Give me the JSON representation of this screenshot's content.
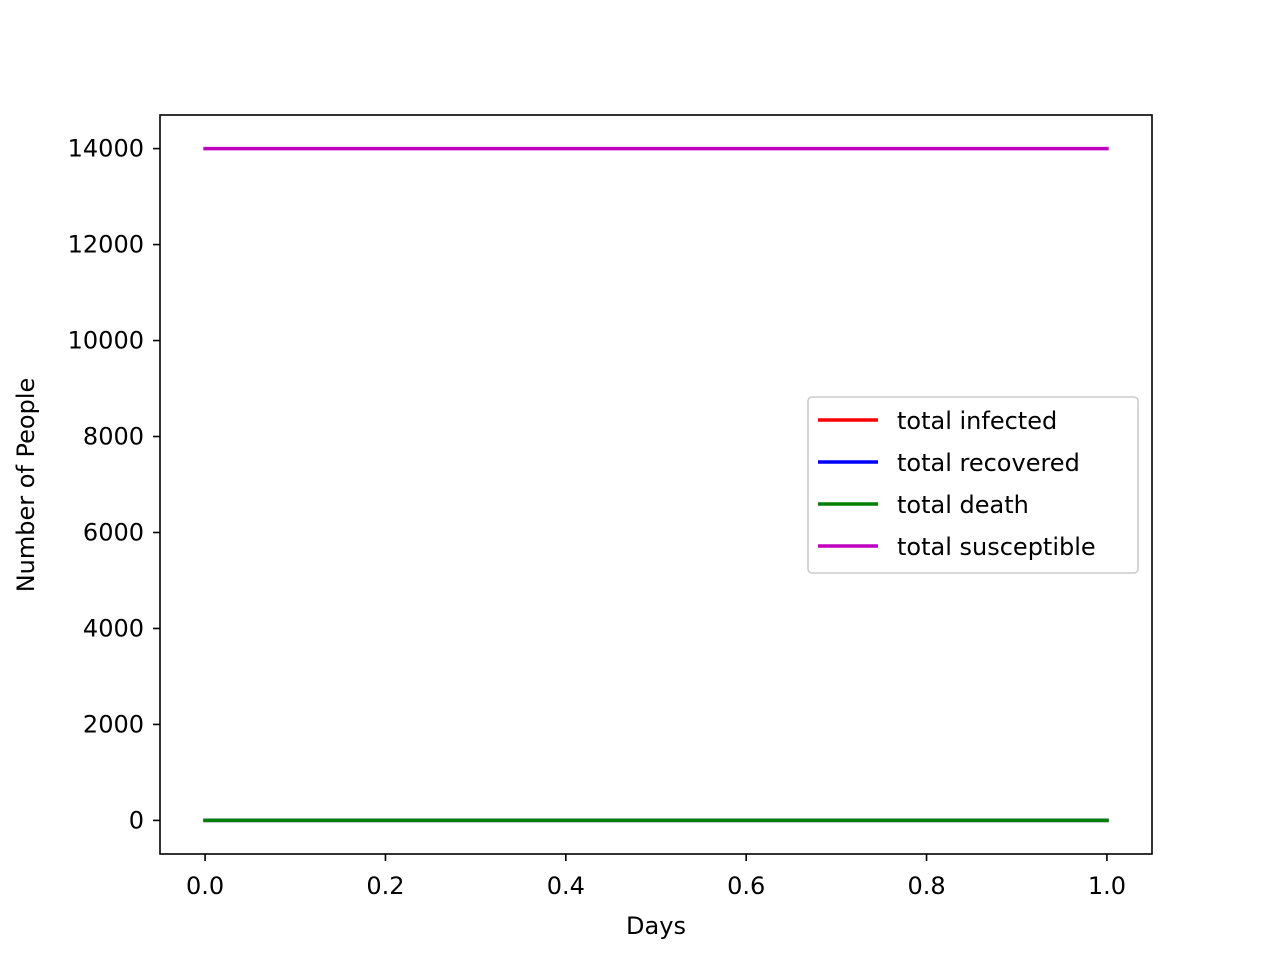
{
  "chart_data": {
    "type": "line",
    "title": "",
    "xlabel": "Days",
    "ylabel": "Number of People",
    "xlim": [
      -0.05,
      1.05
    ],
    "ylim": [
      -700,
      14700
    ],
    "x": [
      0.0,
      1.0
    ],
    "xticks": [
      0.0,
      0.2,
      0.4,
      0.6,
      0.8,
      1.0
    ],
    "xtick_labels": [
      "0.0",
      "0.2",
      "0.4",
      "0.6",
      "0.8",
      "1.0"
    ],
    "yticks": [
      0,
      2000,
      4000,
      6000,
      8000,
      10000,
      12000,
      14000
    ],
    "ytick_labels": [
      "0",
      "2000",
      "4000",
      "6000",
      "8000",
      "10000",
      "12000",
      "14000"
    ],
    "grid": false,
    "legend_position": "center-right",
    "series": [
      {
        "name": "total infected",
        "color": "#ff0000",
        "values": [
          0,
          0
        ]
      },
      {
        "name": "total recovered",
        "color": "#0000ff",
        "values": [
          0,
          0
        ]
      },
      {
        "name": "total death",
        "color": "#008000",
        "values": [
          0,
          0
        ]
      },
      {
        "name": "total susceptible",
        "color": "#bf00bf",
        "values": [
          14000,
          14000
        ]
      }
    ]
  }
}
